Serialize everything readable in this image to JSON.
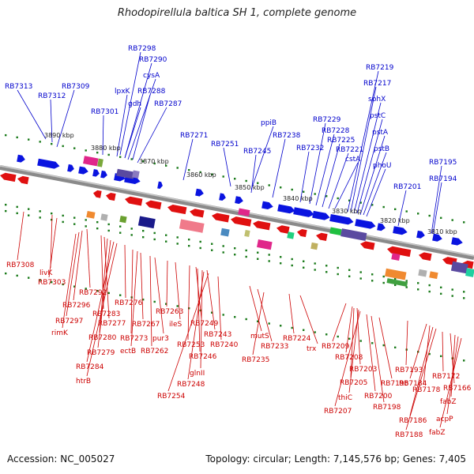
{
  "title": "Rhodopirellula baltica SH 1, complete genome",
  "footer": {
    "accession": "Accession: NC_005027",
    "summary": "Topology: circular; Length: 7,145,576 bp; Genes: 7,405"
  },
  "colors": {
    "forward_label": "#0000cc",
    "reverse_label": "#cc0000",
    "forward_gene": "#0a14e0",
    "reverse_gene": "#e01010",
    "backbone": "#8a8a8a",
    "tick": "#1a7a1a"
  },
  "scale_labels": [
    "3890 kbp",
    "3880 kbp",
    "3870 kbp",
    "3860 kbp",
    "3850 kbp",
    "3840 kbp",
    "3830 kbp",
    "3820 kbp",
    "3810 kbp"
  ],
  "top_labels": [
    "RB7313",
    "RB7312",
    "RB7309",
    "RB7298",
    "RB7290",
    "cysA",
    "lpxK",
    "RB7288",
    "gdh",
    "RB7287",
    "RB7301",
    "RB7271",
    "RB7251",
    "ppiB",
    "RB7245",
    "RB7238",
    "RB7232",
    "RB7229",
    "RB7228",
    "RB7225",
    "RB7221",
    "cstA",
    "RB7219",
    "RB7217",
    "sphX",
    "pstC",
    "pstA",
    "pstB",
    "phoU",
    "RB7201",
    "RB7195",
    "RB7194"
  ],
  "bottom_labels": [
    "RB7308",
    "livK",
    "RB7303",
    "RB7292",
    "RB7296",
    "RB7297",
    "rimK",
    "RB7283",
    "RB7277",
    "RB7280",
    "RB7279",
    "RB7284",
    "htrB",
    "RB7276",
    "RB7273",
    "ectB",
    "RB7267",
    "pur3",
    "RB7262",
    "RB7263",
    "ileS",
    "RB7253",
    "RB7249",
    "RB7243",
    "RB7246",
    "glnII",
    "RB7248",
    "RB7254",
    "RB7240",
    "mutS",
    "RB7233",
    "RB7235",
    "RB7224",
    "trx",
    "RB7209",
    "RB7208",
    "RB7203",
    "RB7205",
    "thiC",
    "RB7207",
    "RB7200",
    "RB7198",
    "RB7196",
    "RB7193",
    "RB7184",
    "RB7178",
    "RB7186",
    "RB7188",
    "RB7172",
    "RB7166",
    "fabZ",
    "acpP",
    "fabZ"
  ]
}
